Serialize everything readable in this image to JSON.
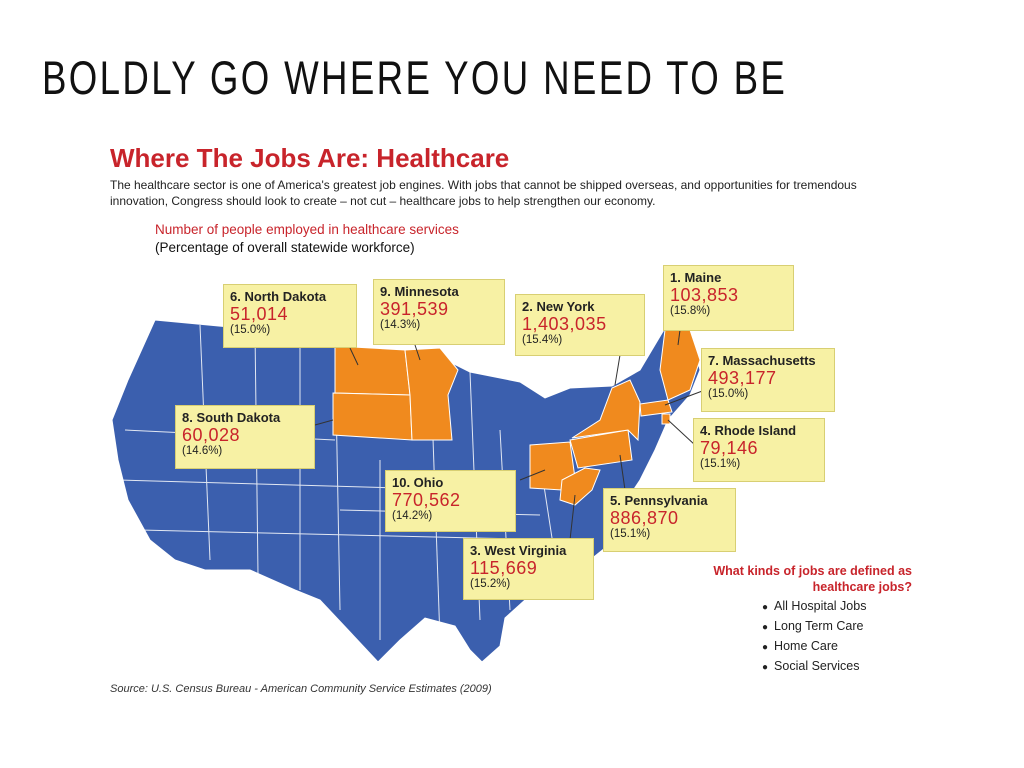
{
  "slide": {
    "title": "BOLDLY GO WHERE YOU NEED TO BE"
  },
  "infographic": {
    "title": "Where The Jobs Are: Healthcare",
    "description": "The healthcare sector is one of America's greatest job engines. With jobs that cannot be shipped overseas, and opportunities for tremendous innovation, Congress should look to create – not cut – healthcare jobs to help strengthen our economy.",
    "subtitle_line1": "Number of people employed in healthcare services",
    "subtitle_line2": "(Percentage of overall statewide workforce)",
    "states": [
      {
        "rank_name": "1. Maine",
        "count": "103,853",
        "percent": "(15.8%)"
      },
      {
        "rank_name": "2. New York",
        "count": "1,403,035",
        "percent": "(15.4%)"
      },
      {
        "rank_name": "3. West Virginia",
        "count": "115,669",
        "percent": "(15.2%)"
      },
      {
        "rank_name": "4. Rhode Island",
        "count": "79,146",
        "percent": "(15.1%)"
      },
      {
        "rank_name": "5. Pennsylvania",
        "count": "886,870",
        "percent": "(15.1%)"
      },
      {
        "rank_name": "6. North Dakota",
        "count": "51,014",
        "percent": "(15.0%)"
      },
      {
        "rank_name": "7. Massachusetts",
        "count": "493,177",
        "percent": "(15.0%)"
      },
      {
        "rank_name": "8. South Dakota",
        "count": "60,028",
        "percent": "(14.6%)"
      },
      {
        "rank_name": "9. Minnesota",
        "count": "391,539",
        "percent": "(14.3%)"
      },
      {
        "rank_name": "10. Ohio",
        "count": "770,562",
        "percent": "(14.2%)"
      }
    ],
    "jobs_question": "What kinds of jobs are defined as healthcare jobs?",
    "jobs": [
      "All Hospital Jobs",
      "Long Term Care",
      "Home Care",
      "Social Services"
    ],
    "source": "Source: U.S. Census Bureau - American Community Service Estimates (2009)"
  },
  "colors": {
    "map_blue": "#3b5fae",
    "highlight_orange": "#f08a1e",
    "callout_yellow": "#f7f1a4",
    "accent_red": "#c8242b"
  }
}
